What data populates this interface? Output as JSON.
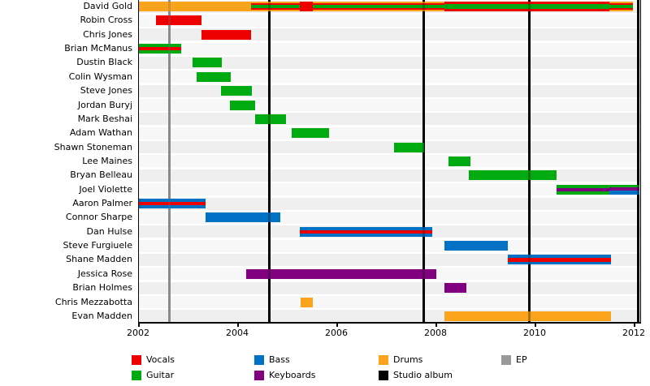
{
  "chart_data": {
    "type": "bar",
    "subtype": "gantt-band-membership-timeline",
    "title": "",
    "xlabel": "",
    "ylabel": "",
    "grid": false,
    "legend_position": "bottom",
    "x_axis": {
      "min": 2002,
      "max": 2012.12,
      "ticks": [
        2002,
        2004,
        2006,
        2008,
        2010,
        2012
      ],
      "tick_labels": [
        "2002",
        "2004",
        "2006",
        "2008",
        "2010",
        "2012"
      ]
    },
    "colors": {
      "vocals": "#ee0000",
      "guitar": "#00aa11",
      "bass": "#0072c6",
      "keyboards": "#800080",
      "drums": "#faa31b",
      "ep": "#999999",
      "album": "#000000"
    },
    "legend": [
      {
        "label": "Vocals",
        "color_key": "vocals",
        "row": 0,
        "col": 0
      },
      {
        "label": "Guitar",
        "color_key": "guitar",
        "row": 1,
        "col": 0
      },
      {
        "label": "Bass",
        "color_key": "bass",
        "row": 0,
        "col": 1
      },
      {
        "label": "Keyboards",
        "color_key": "keyboards",
        "row": 1,
        "col": 1
      },
      {
        "label": "Drums",
        "color_key": "drums",
        "row": 0,
        "col": 2
      },
      {
        "label": "Studio album",
        "color_key": "album",
        "row": 1,
        "col": 2
      },
      {
        "label": "EP",
        "color_key": "ep",
        "row": 0,
        "col": 3
      }
    ],
    "events": [
      {
        "year": 2002.61,
        "type": "ep"
      },
      {
        "year": 2004.63,
        "type": "album"
      },
      {
        "year": 2007.75,
        "type": "album"
      },
      {
        "year": 2009.87,
        "type": "album"
      },
      {
        "year": 2012.07,
        "type": "album"
      }
    ],
    "members": [
      {
        "name": "David Gold",
        "segments": [
          {
            "start": 2002.0,
            "end": 2004.26,
            "stripes": [
              {
                "c": "drums",
                "f": 1
              }
            ]
          },
          {
            "start": 2004.26,
            "end": 2005.25,
            "stripes": [
              {
                "c": "drums",
                "f": 0.14
              },
              {
                "c": "vocals",
                "f": 0.18
              },
              {
                "c": "guitar",
                "f": 0.36
              },
              {
                "c": "vocals",
                "f": 0.18
              },
              {
                "c": "drums",
                "f": 0.14
              }
            ]
          },
          {
            "start": 2005.25,
            "end": 2005.51,
            "stripes": [
              {
                "c": "vocals",
                "f": 1
              }
            ]
          },
          {
            "start": 2005.51,
            "end": 2008.16,
            "stripes": [
              {
                "c": "drums",
                "f": 0.14
              },
              {
                "c": "vocals",
                "f": 0.18
              },
              {
                "c": "guitar",
                "f": 0.36
              },
              {
                "c": "vocals",
                "f": 0.18
              },
              {
                "c": "drums",
                "f": 0.14
              }
            ]
          },
          {
            "start": 2008.16,
            "end": 2011.49,
            "stripes": [
              {
                "c": "vocals",
                "f": 0.25
              },
              {
                "c": "guitar",
                "f": 0.5
              },
              {
                "c": "vocals",
                "f": 0.25
              }
            ]
          },
          {
            "start": 2011.49,
            "end": 2011.97,
            "stripes": [
              {
                "c": "drums",
                "f": 0.14
              },
              {
                "c": "vocals",
                "f": 0.18
              },
              {
                "c": "guitar",
                "f": 0.36
              },
              {
                "c": "vocals",
                "f": 0.18
              },
              {
                "c": "drums",
                "f": 0.14
              }
            ]
          }
        ]
      },
      {
        "name": "Robin Cross",
        "segments": [
          {
            "start": 2002.34,
            "end": 2003.26,
            "stripes": [
              {
                "c": "vocals",
                "f": 1
              }
            ]
          }
        ]
      },
      {
        "name": "Chris Jones",
        "segments": [
          {
            "start": 2003.26,
            "end": 2004.27,
            "stripes": [
              {
                "c": "vocals",
                "f": 1
              }
            ]
          }
        ]
      },
      {
        "name": "Brian McManus",
        "segments": [
          {
            "start": 2002.0,
            "end": 2002.85,
            "stripes": [
              {
                "c": "guitar",
                "f": 0.33
              },
              {
                "c": "vocals",
                "f": 0.34
              },
              {
                "c": "guitar",
                "f": 0.33
              }
            ]
          }
        ]
      },
      {
        "name": "Dustin Black",
        "segments": [
          {
            "start": 2003.09,
            "end": 2003.68,
            "stripes": [
              {
                "c": "guitar",
                "f": 1
              }
            ]
          }
        ]
      },
      {
        "name": "Colin Wysman",
        "segments": [
          {
            "start": 2003.16,
            "end": 2003.85,
            "stripes": [
              {
                "c": "guitar",
                "f": 1
              }
            ]
          }
        ]
      },
      {
        "name": "Steve Jones",
        "segments": [
          {
            "start": 2003.66,
            "end": 2004.28,
            "stripes": [
              {
                "c": "guitar",
                "f": 1
              }
            ]
          }
        ]
      },
      {
        "name": "Jordan Buryj",
        "segments": [
          {
            "start": 2003.83,
            "end": 2004.34,
            "stripes": [
              {
                "c": "guitar",
                "f": 1
              }
            ]
          }
        ]
      },
      {
        "name": "Mark Beshai",
        "segments": [
          {
            "start": 2004.34,
            "end": 2004.97,
            "stripes": [
              {
                "c": "guitar",
                "f": 1
              }
            ]
          }
        ]
      },
      {
        "name": "Adam Wathan",
        "segments": [
          {
            "start": 2005.09,
            "end": 2005.84,
            "stripes": [
              {
                "c": "guitar",
                "f": 1
              }
            ]
          }
        ]
      },
      {
        "name": "Shawn Stoneman",
        "segments": [
          {
            "start": 2007.15,
            "end": 2007.75,
            "stripes": [
              {
                "c": "guitar",
                "f": 1
              }
            ]
          }
        ]
      },
      {
        "name": "Lee Maines",
        "segments": [
          {
            "start": 2008.25,
            "end": 2008.69,
            "stripes": [
              {
                "c": "guitar",
                "f": 1
              }
            ]
          }
        ]
      },
      {
        "name": "Bryan Belleau",
        "segments": [
          {
            "start": 2008.66,
            "end": 2010.43,
            "stripes": [
              {
                "c": "guitar",
                "f": 1
              }
            ]
          }
        ]
      },
      {
        "name": "Joel Violette",
        "segments": [
          {
            "start": 2010.43,
            "end": 2011.49,
            "stripes": [
              {
                "c": "guitar",
                "f": 0.32
              },
              {
                "c": "keyboards",
                "f": 0.36
              },
              {
                "c": "guitar",
                "f": 0.32
              }
            ]
          },
          {
            "start": 2011.49,
            "end": 2012.1,
            "stripes": [
              {
                "c": "guitar",
                "f": 0.25
              },
              {
                "c": "keyboards",
                "f": 0.35
              },
              {
                "c": "bass",
                "f": 0.4
              }
            ]
          }
        ]
      },
      {
        "name": "Aaron Palmer",
        "segments": [
          {
            "start": 2002.0,
            "end": 2003.35,
            "stripes": [
              {
                "c": "bass",
                "f": 0.33
              },
              {
                "c": "vocals",
                "f": 0.34
              },
              {
                "c": "bass",
                "f": 0.33
              }
            ]
          }
        ]
      },
      {
        "name": "Connor Sharpe",
        "segments": [
          {
            "start": 2003.35,
            "end": 2004.85,
            "stripes": [
              {
                "c": "bass",
                "f": 1
              }
            ]
          }
        ]
      },
      {
        "name": "Dan Hulse",
        "segments": [
          {
            "start": 2005.25,
            "end": 2007.92,
            "stripes": [
              {
                "c": "bass",
                "f": 0.33
              },
              {
                "c": "vocals",
                "f": 0.34
              },
              {
                "c": "bass",
                "f": 0.33
              }
            ]
          }
        ]
      },
      {
        "name": "Steve Furgiuele",
        "segments": [
          {
            "start": 2008.16,
            "end": 2009.44,
            "stripes": [
              {
                "c": "bass",
                "f": 1
              }
            ]
          }
        ]
      },
      {
        "name": "Shane Madden",
        "segments": [
          {
            "start": 2009.44,
            "end": 2011.53,
            "stripes": [
              {
                "c": "bass",
                "f": 0.33
              },
              {
                "c": "vocals",
                "f": 0.34
              },
              {
                "c": "bass",
                "f": 0.33
              }
            ]
          }
        ]
      },
      {
        "name": "Jessica Rose",
        "segments": [
          {
            "start": 2004.17,
            "end": 2008.0,
            "stripes": [
              {
                "c": "keyboards",
                "f": 1
              }
            ]
          }
        ]
      },
      {
        "name": "Brian Holmes",
        "segments": [
          {
            "start": 2008.16,
            "end": 2008.6,
            "stripes": [
              {
                "c": "keyboards",
                "f": 1
              }
            ]
          }
        ]
      },
      {
        "name": "Chris Mezzabotta",
        "segments": [
          {
            "start": 2005.26,
            "end": 2005.51,
            "stripes": [
              {
                "c": "drums",
                "f": 1
              }
            ]
          }
        ]
      },
      {
        "name": "Evan Madden",
        "segments": [
          {
            "start": 2008.16,
            "end": 2011.53,
            "stripes": [
              {
                "c": "drums",
                "f": 1
              }
            ]
          }
        ]
      }
    ]
  }
}
